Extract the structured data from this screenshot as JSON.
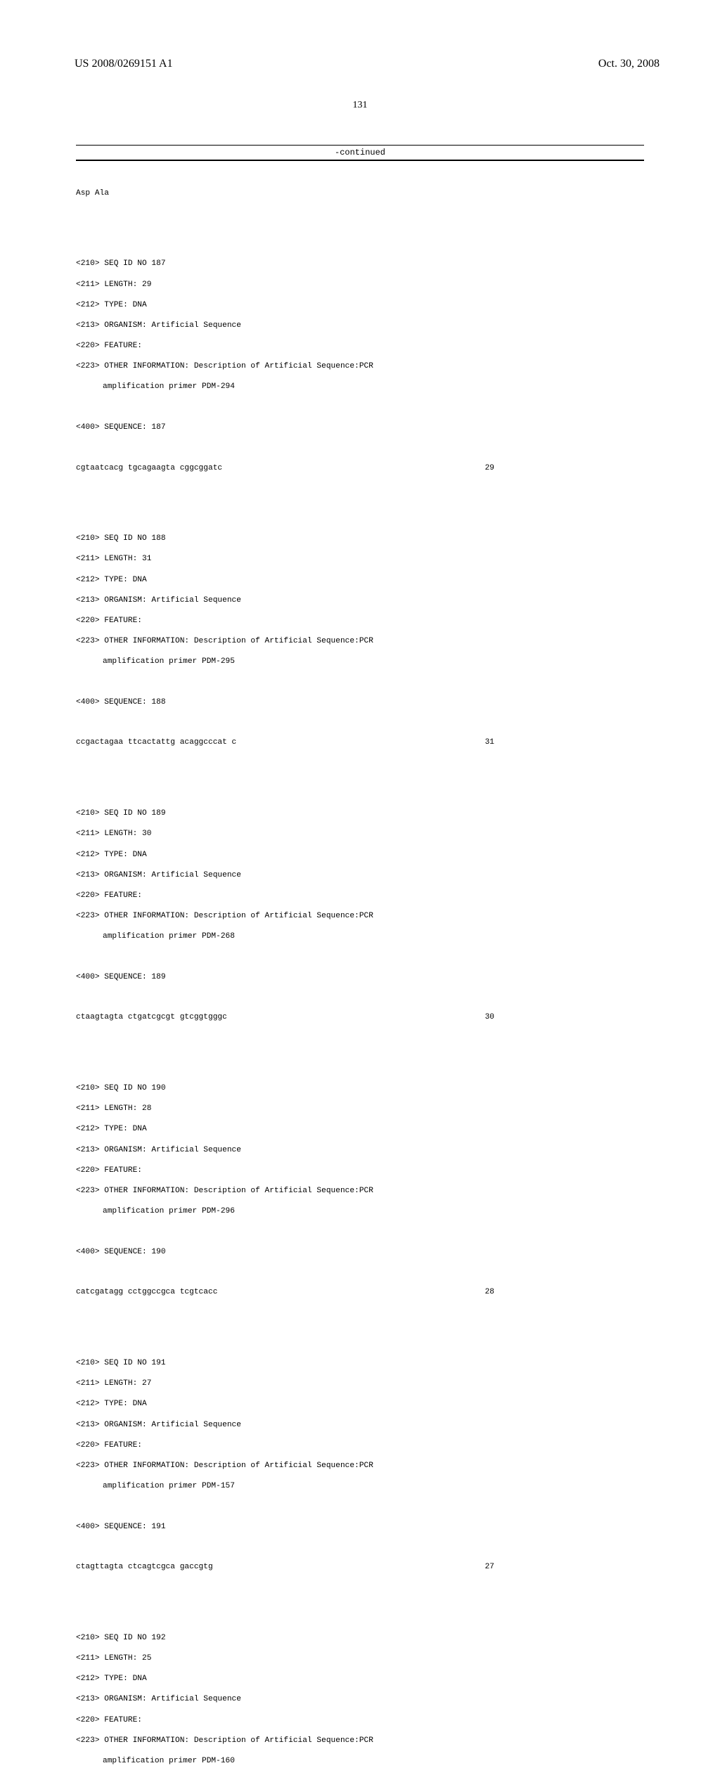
{
  "header": {
    "pub_number": "US 2008/0269151 A1",
    "pub_date": "Oct. 30, 2008"
  },
  "page_number": "131",
  "continued_label": "-continued",
  "top_residue": "Asp Ala",
  "entries": [
    {
      "seq_id": "<210> SEQ ID NO 187",
      "length": "<211> LENGTH: 29",
      "type": "<212> TYPE: DNA",
      "organism": "<213> ORGANISM: Artificial Sequence",
      "feature": "<220> FEATURE:",
      "other_info": "<223> OTHER INFORMATION: Description of Artificial Sequence:PCR",
      "other_info_cont": "amplification primer PDM-294",
      "sequence_label": "<400> SEQUENCE: 187",
      "sequence_data": "cgtaatcacg tgcagaagta cggcggatc",
      "sequence_len": "29"
    },
    {
      "seq_id": "<210> SEQ ID NO 188",
      "length": "<211> LENGTH: 31",
      "type": "<212> TYPE: DNA",
      "organism": "<213> ORGANISM: Artificial Sequence",
      "feature": "<220> FEATURE:",
      "other_info": "<223> OTHER INFORMATION: Description of Artificial Sequence:PCR",
      "other_info_cont": "amplification primer PDM-295",
      "sequence_label": "<400> SEQUENCE: 188",
      "sequence_data": "ccgactagaa ttcactattg acaggcccat c",
      "sequence_len": "31"
    },
    {
      "seq_id": "<210> SEQ ID NO 189",
      "length": "<211> LENGTH: 30",
      "type": "<212> TYPE: DNA",
      "organism": "<213> ORGANISM: Artificial Sequence",
      "feature": "<220> FEATURE:",
      "other_info": "<223> OTHER INFORMATION: Description of Artificial Sequence:PCR",
      "other_info_cont": "amplification primer PDM-268",
      "sequence_label": "<400> SEQUENCE: 189",
      "sequence_data": "ctaagtagta ctgatcgcgt gtcggtgggc",
      "sequence_len": "30"
    },
    {
      "seq_id": "<210> SEQ ID NO 190",
      "length": "<211> LENGTH: 28",
      "type": "<212> TYPE: DNA",
      "organism": "<213> ORGANISM: Artificial Sequence",
      "feature": "<220> FEATURE:",
      "other_info": "<223> OTHER INFORMATION: Description of Artificial Sequence:PCR",
      "other_info_cont": "amplification primer PDM-296",
      "sequence_label": "<400> SEQUENCE: 190",
      "sequence_data": "catcgatagg cctggccgca tcgtcacc",
      "sequence_len": "28"
    },
    {
      "seq_id": "<210> SEQ ID NO 191",
      "length": "<211> LENGTH: 27",
      "type": "<212> TYPE: DNA",
      "organism": "<213> ORGANISM: Artificial Sequence",
      "feature": "<220> FEATURE:",
      "other_info": "<223> OTHER INFORMATION: Description of Artificial Sequence:PCR",
      "other_info_cont": "amplification primer PDM-157",
      "sequence_label": "<400> SEQUENCE: 191",
      "sequence_data": "ctagttagta ctcagtcgca gaccgtg",
      "sequence_len": "27"
    },
    {
      "seq_id": "<210> SEQ ID NO 192",
      "length": "<211> LENGTH: 25",
      "type": "<212> TYPE: DNA",
      "organism": "<213> ORGANISM: Artificial Sequence",
      "feature": "<220> FEATURE:",
      "other_info": "<223> OTHER INFORMATION: Description of Artificial Sequence:PCR",
      "other_info_cont": "amplification primer PDM-160",
      "sequence_label": "",
      "sequence_data": "",
      "sequence_len": ""
    }
  ]
}
